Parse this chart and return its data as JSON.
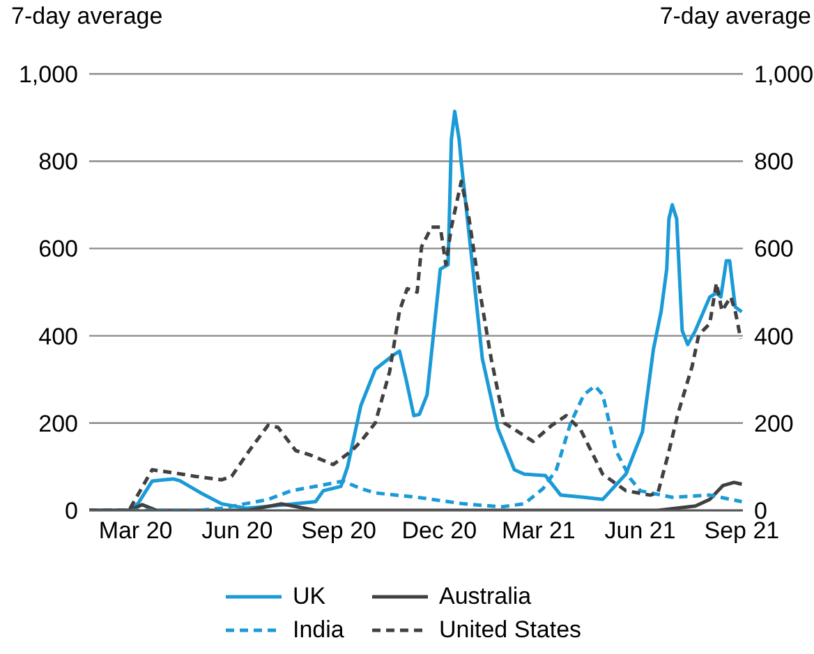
{
  "chart_data": {
    "type": "line",
    "ylabel": "7-day average",
    "y2label": "7-day average",
    "xlim": [
      "2020-02-02",
      "2021-09-16"
    ],
    "xticks": [
      {
        "value": "2020-03-15",
        "label": "Mar 20"
      },
      {
        "value": "2020-06-15",
        "label": "Jun 20"
      },
      {
        "value": "2020-09-15",
        "label": "Sep 20"
      },
      {
        "value": "2020-12-15",
        "label": "Dec 20"
      },
      {
        "value": "2021-03-15",
        "label": "Mar 21"
      },
      {
        "value": "2021-06-15",
        "label": "Jun 21"
      },
      {
        "value": "2021-09-15",
        "label": "Sep 21"
      }
    ],
    "ylim": [
      0,
      1000
    ],
    "yticks": [
      0,
      200,
      400,
      600,
      800,
      {
        "value": 1000,
        "label": "1,000"
      }
    ],
    "y2lim": [
      0,
      1000
    ],
    "y2ticks": [
      0,
      200,
      400,
      600,
      800,
      {
        "value": 1000,
        "label": "1,000"
      }
    ],
    "grid": "y",
    "legend": "bottom",
    "marker": "none",
    "series": [
      {
        "name": "UK",
        "color": "#1a9ad6",
        "line_style": "solid",
        "x": [
          "2020-02-02",
          "2020-03-09",
          "2020-03-17",
          "2020-03-30",
          "2020-04-09",
          "2020-04-18",
          "2020-04-24",
          "2020-05-13",
          "2020-06-01",
          "2020-06-23",
          "2020-07-25",
          "2020-08-25",
          "2020-09-01",
          "2020-09-17",
          "2020-09-23",
          "2020-10-05",
          "2020-10-18",
          "2020-11-03",
          "2020-11-09",
          "2020-11-15",
          "2020-11-22",
          "2020-11-27",
          "2020-12-04",
          "2020-12-16",
          "2020-12-23",
          "2020-12-26",
          "2020-12-29",
          "2021-01-02",
          "2021-01-04",
          "2021-01-14",
          "2021-01-23",
          "2021-02-06",
          "2021-02-21",
          "2021-03-02",
          "2021-03-21",
          "2021-04-04",
          "2021-04-25",
          "2021-05-12",
          "2021-06-02",
          "2021-06-17",
          "2021-06-27",
          "2021-07-04",
          "2021-07-09",
          "2021-07-11",
          "2021-07-14",
          "2021-07-18",
          "2021-07-23",
          "2021-07-28",
          "2021-08-04",
          "2021-08-17",
          "2021-08-23",
          "2021-08-27",
          "2021-09-01",
          "2021-09-04",
          "2021-09-09",
          "2021-09-15"
        ],
        "values": [
          0,
          0,
          15,
          67,
          70,
          72,
          68,
          40,
          15,
          5,
          12,
          20,
          45,
          55,
          100,
          240,
          323,
          355,
          365,
          300,
          217,
          220,
          265,
          553,
          563,
          850,
          914,
          850,
          796,
          563,
          348,
          188,
          93,
          83,
          80,
          35,
          30,
          25,
          83,
          180,
          370,
          457,
          553,
          668,
          700,
          668,
          412,
          380,
          412,
          489,
          498,
          489,
          572,
          572,
          466,
          455
        ]
      },
      {
        "name": "Australia",
        "color": "#404040",
        "line_style": "solid",
        "x": [
          "2020-02-02",
          "2020-03-09",
          "2020-03-21",
          "2020-04-03",
          "2020-06-25",
          "2020-07-25",
          "2020-08-25",
          "2021-07-01",
          "2021-08-04",
          "2021-08-17",
          "2021-08-29",
          "2021-09-08",
          "2021-09-15"
        ],
        "values": [
          0,
          0,
          13,
          0,
          0,
          15,
          0,
          0,
          10,
          25,
          57,
          64,
          60
        ]
      },
      {
        "name": "India",
        "color": "#1a9ad6",
        "line_style": "dashed",
        "x": [
          "2020-02-02",
          "2020-05-11",
          "2020-06-01",
          "2020-07-13",
          "2020-08-03",
          "2020-08-25",
          "2020-09-19",
          "2020-10-05",
          "2020-10-18",
          "2020-11-25",
          "2021-01-06",
          "2021-02-09",
          "2021-03-02",
          "2021-03-19",
          "2021-03-31",
          "2021-04-13",
          "2021-04-25",
          "2021-05-05",
          "2021-05-12",
          "2021-05-24",
          "2021-06-06",
          "2021-06-15",
          "2021-07-14",
          "2021-08-17",
          "2021-09-15"
        ],
        "values": [
          0,
          0,
          5,
          25,
          45,
          55,
          67,
          50,
          40,
          30,
          15,
          8,
          15,
          50,
          93,
          200,
          265,
          285,
          265,
          137,
          73,
          45,
          30,
          35,
          20
        ]
      },
      {
        "name": "United States",
        "color": "#404040",
        "line_style": "dashed",
        "x": [
          "2020-02-02",
          "2020-03-09",
          "2020-03-30",
          "2020-04-21",
          "2020-05-08",
          "2020-06-01",
          "2020-06-10",
          "2020-06-26",
          "2020-07-13",
          "2020-07-22",
          "2020-08-07",
          "2020-08-20",
          "2020-09-10",
          "2020-09-27",
          "2020-10-05",
          "2020-10-18",
          "2020-10-31",
          "2020-11-09",
          "2020-11-16",
          "2020-11-25",
          "2020-11-29",
          "2020-12-08",
          "2020-12-16",
          "2020-12-21",
          "2020-12-26",
          "2021-01-04",
          "2021-01-11",
          "2021-01-21",
          "2021-01-31",
          "2021-02-12",
          "2021-03-10",
          "2021-03-27",
          "2021-04-09",
          "2021-04-22",
          "2021-05-12",
          "2021-06-02",
          "2021-06-24",
          "2021-07-01",
          "2021-07-10",
          "2021-07-19",
          "2021-08-01",
          "2021-08-07",
          "2021-08-17",
          "2021-08-23",
          "2021-08-28",
          "2021-09-05",
          "2021-09-09",
          "2021-09-14"
        ],
        "values": [
          0,
          0,
          93,
          85,
          78,
          70,
          78,
          137,
          195,
          190,
          137,
          127,
          105,
          137,
          158,
          200,
          317,
          457,
          508,
          500,
          604,
          649,
          649,
          563,
          649,
          754,
          668,
          498,
          348,
          200,
          158,
          195,
          217,
          185,
          83,
          45,
          35,
          40,
          125,
          220,
          330,
          402,
          428,
          521,
          457,
          489,
          457,
          393
        ]
      }
    ]
  }
}
